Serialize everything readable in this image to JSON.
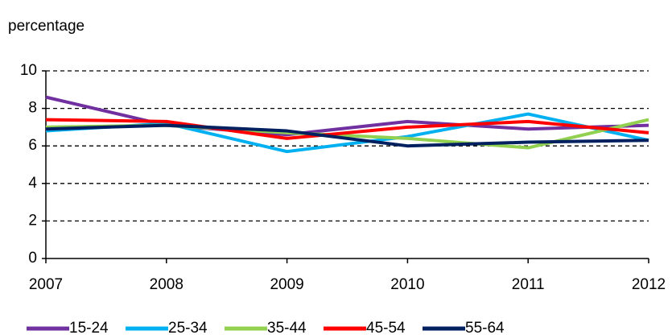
{
  "chart_data": {
    "type": "line",
    "y_label": "percentage",
    "x": [
      2007,
      2008,
      2009,
      2010,
      2011,
      2012
    ],
    "xlim": [
      2007,
      2012
    ],
    "xticks": [
      2007,
      2008,
      2009,
      2010,
      2011,
      2012
    ],
    "ylim": [
      0,
      10
    ],
    "yticks": [
      0,
      2,
      4,
      6,
      8,
      10
    ],
    "grid": true,
    "legend": "bottom",
    "series": [
      {
        "name": "15-24",
        "color": "#7030a0",
        "values": [
          8.6,
          7.1,
          6.6,
          7.3,
          6.9,
          7.1
        ]
      },
      {
        "name": "25-34",
        "color": "#00b0f0",
        "values": [
          6.8,
          7.2,
          5.7,
          6.5,
          7.7,
          6.3
        ]
      },
      {
        "name": "35-44",
        "color": "#92d050",
        "values": [
          7.0,
          7.1,
          6.7,
          6.4,
          5.9,
          7.4
        ]
      },
      {
        "name": "45-54",
        "color": "#ff0000",
        "values": [
          7.4,
          7.3,
          6.4,
          7.0,
          7.3,
          6.7
        ]
      },
      {
        "name": "55-64",
        "color": "#002060",
        "values": [
          6.9,
          7.1,
          6.8,
          6.0,
          6.2,
          6.3
        ]
      }
    ]
  }
}
